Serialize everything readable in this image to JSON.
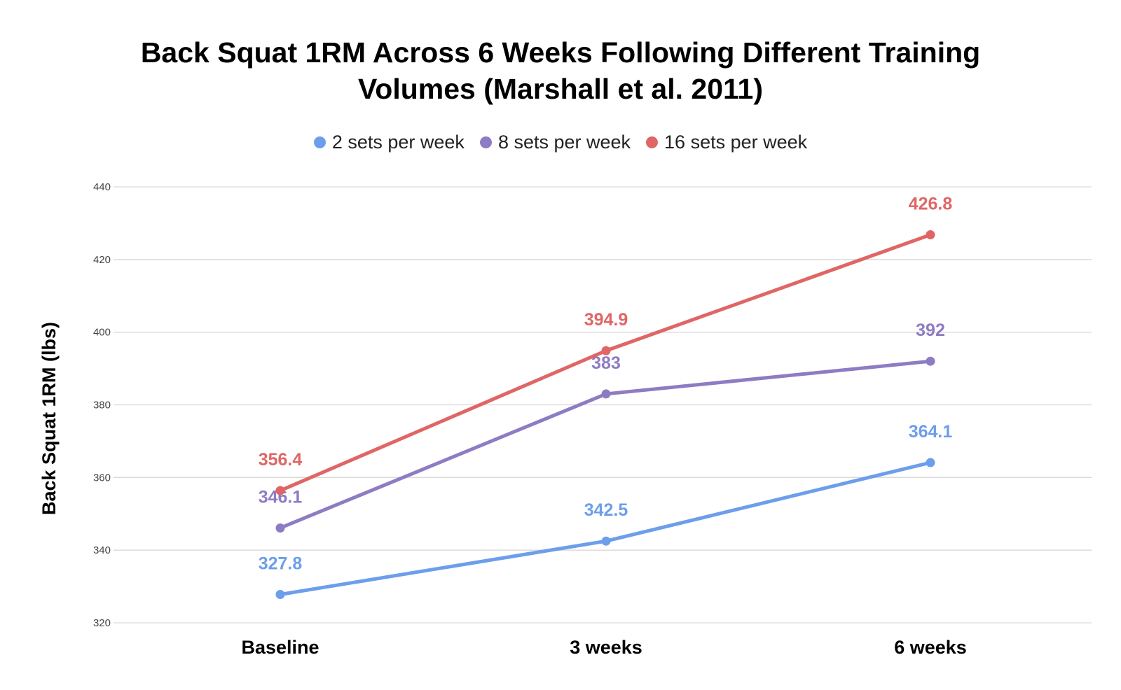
{
  "title_line1": "Back Squat 1RM Across 6 Weeks Following Different Training",
  "title_line2": "Volumes (Marshall et al. 2011)",
  "chart_data": {
    "type": "line",
    "title": "Back Squat 1RM Across 6 Weeks Following Different Training Volumes (Marshall et al. 2011)",
    "xlabel": "",
    "ylabel": "Back Squat 1RM (lbs)",
    "categories": [
      "Baseline",
      "3 weeks",
      "6 weeks"
    ],
    "ylim": [
      320,
      440
    ],
    "yticks": [
      320,
      340,
      360,
      380,
      400,
      420,
      440
    ],
    "grid": true,
    "legend_position": "top-center",
    "series": [
      {
        "name": "2 sets per week",
        "color": "#6d9eeb",
        "values": [
          327.8,
          342.5,
          364.1
        ],
        "labels": [
          "327.8",
          "342.5",
          "364.1"
        ]
      },
      {
        "name": "8 sets per week",
        "color": "#8e7cc3",
        "values": [
          346.1,
          383,
          392
        ],
        "labels": [
          "346.1",
          "383",
          "392"
        ]
      },
      {
        "name": "16 sets per week",
        "color": "#e06666",
        "values": [
          356.4,
          394.9,
          426.8
        ],
        "labels": [
          "356.4",
          "394.9",
          "426.8"
        ]
      }
    ]
  }
}
